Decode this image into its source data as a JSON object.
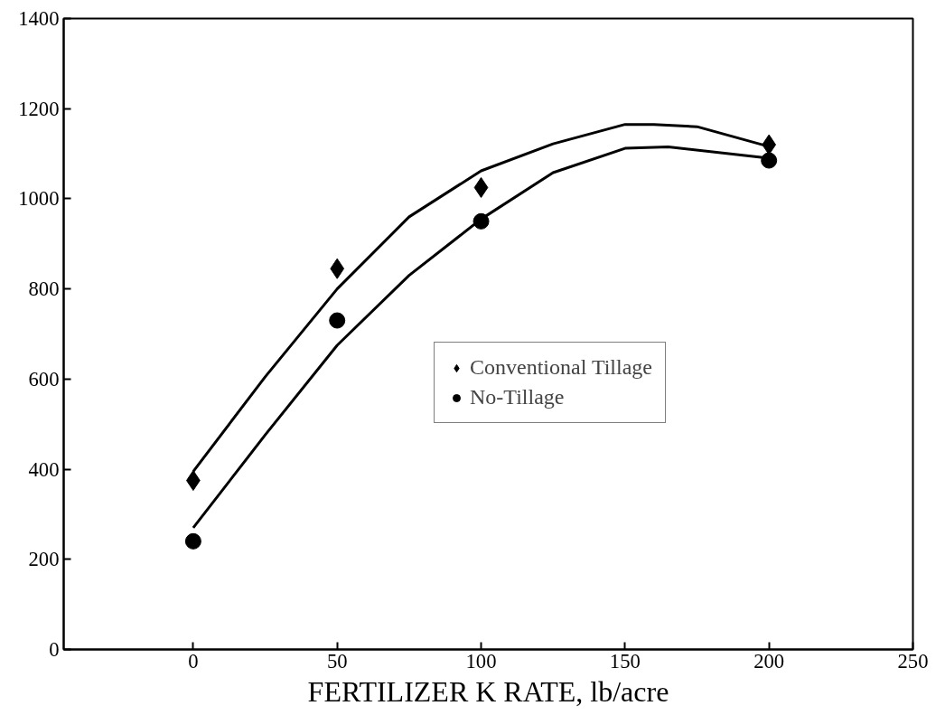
{
  "chart_data": {
    "type": "scatter",
    "xlabel": "FERTILIZER K RATE, lb/acre",
    "x": [
      0,
      50,
      100,
      200
    ],
    "xlim": [
      -45,
      250
    ],
    "xticks": [
      0,
      50,
      100,
      150,
      200,
      250
    ],
    "ylim": [
      0,
      1400
    ],
    "yticks": [
      0,
      200,
      400,
      600,
      800,
      1000,
      1200,
      1400
    ],
    "grid": false,
    "legend": "right",
    "series": [
      {
        "name": "Conventional Tillage",
        "marker": "diamond",
        "color": "#000000",
        "values": [
          375,
          845,
          1025,
          1120
        ]
      },
      {
        "name": "No-Tillage",
        "marker": "circle",
        "color": "#000000",
        "values": [
          240,
          730,
          950,
          1085
        ]
      },
      {
        "type": "line",
        "color": "#000000",
        "x": [
          0,
          25,
          50,
          75,
          100,
          125,
          150,
          160,
          175,
          200
        ],
        "values": [
          395,
          605,
          800,
          960,
          1062,
          1122,
          1165,
          1165,
          1160,
          1116
        ]
      },
      {
        "type": "line",
        "color": "#000000",
        "x": [
          0,
          25,
          50,
          75,
          100,
          125,
          150,
          165,
          200
        ],
        "values": [
          270,
          476,
          675,
          830,
          955,
          1058,
          1112,
          1115,
          1090
        ]
      }
    ]
  }
}
